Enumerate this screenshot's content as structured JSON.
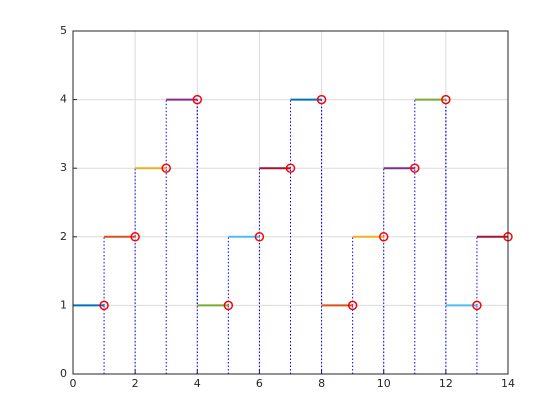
{
  "chart_data": {
    "type": "step",
    "x": [
      1,
      2,
      3,
      4,
      5,
      6,
      7,
      8,
      9,
      10,
      11,
      12,
      13,
      14
    ],
    "values": [
      1,
      2,
      3,
      4,
      1,
      2,
      3,
      4,
      1,
      2,
      3,
      4,
      1,
      2
    ],
    "colors": [
      "#0072BD",
      "#D95319",
      "#EDB120",
      "#7E2F8E",
      "#77AC30",
      "#4DBEEE",
      "#A2142F",
      "#0072BD",
      "#D95319",
      "#EDB120",
      "#7E2F8E",
      "#77AC30",
      "#4DBEEE",
      "#A2142F"
    ],
    "marker_color": "#ff0000",
    "stem_color": "#0000ff",
    "xlim": [
      0,
      14
    ],
    "xticks": [
      0,
      2,
      4,
      6,
      8,
      10,
      12,
      14
    ],
    "ylim": [
      0,
      5
    ],
    "yticks": [
      0,
      1,
      2,
      3,
      4,
      5
    ],
    "grid": true
  }
}
